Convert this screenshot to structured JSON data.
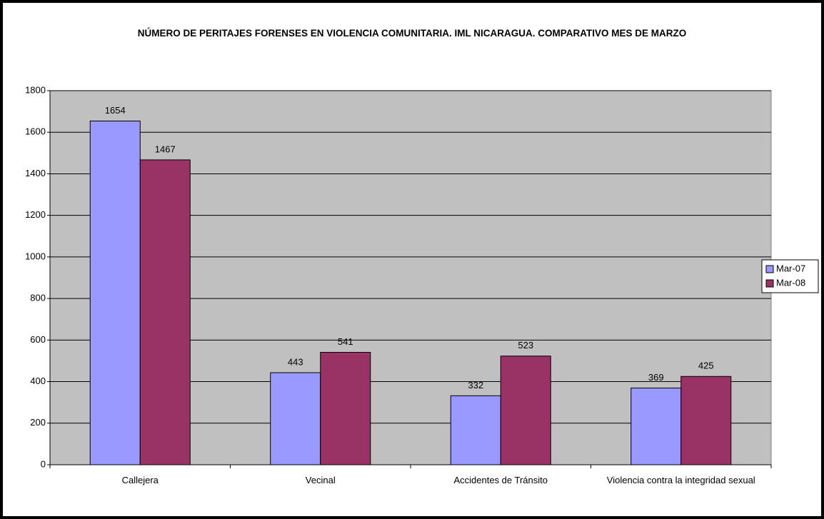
{
  "chart_data": {
    "type": "bar",
    "title": "NÚMERO DE PERITAJES FORENSES EN VIOLENCIA COMUNITARIA. IML NICARAGUA. COMPARATIVO MES DE MARZO",
    "categories": [
      "Callejera",
      "Vecinal",
      "Accidentes de Tránsito",
      "Violencia contra la integridad sexual"
    ],
    "series": [
      {
        "name": "Mar-07",
        "color": "#9999ff",
        "values": [
          1654,
          443,
          332,
          369
        ]
      },
      {
        "name": "Mar-08",
        "color": "#993366",
        "values": [
          1467,
          541,
          523,
          425
        ]
      }
    ],
    "ylim": [
      0,
      1800
    ],
    "yticks": [
      0,
      200,
      400,
      600,
      800,
      1000,
      1200,
      1400,
      1600,
      1800
    ],
    "grid": true,
    "legend": "right"
  }
}
